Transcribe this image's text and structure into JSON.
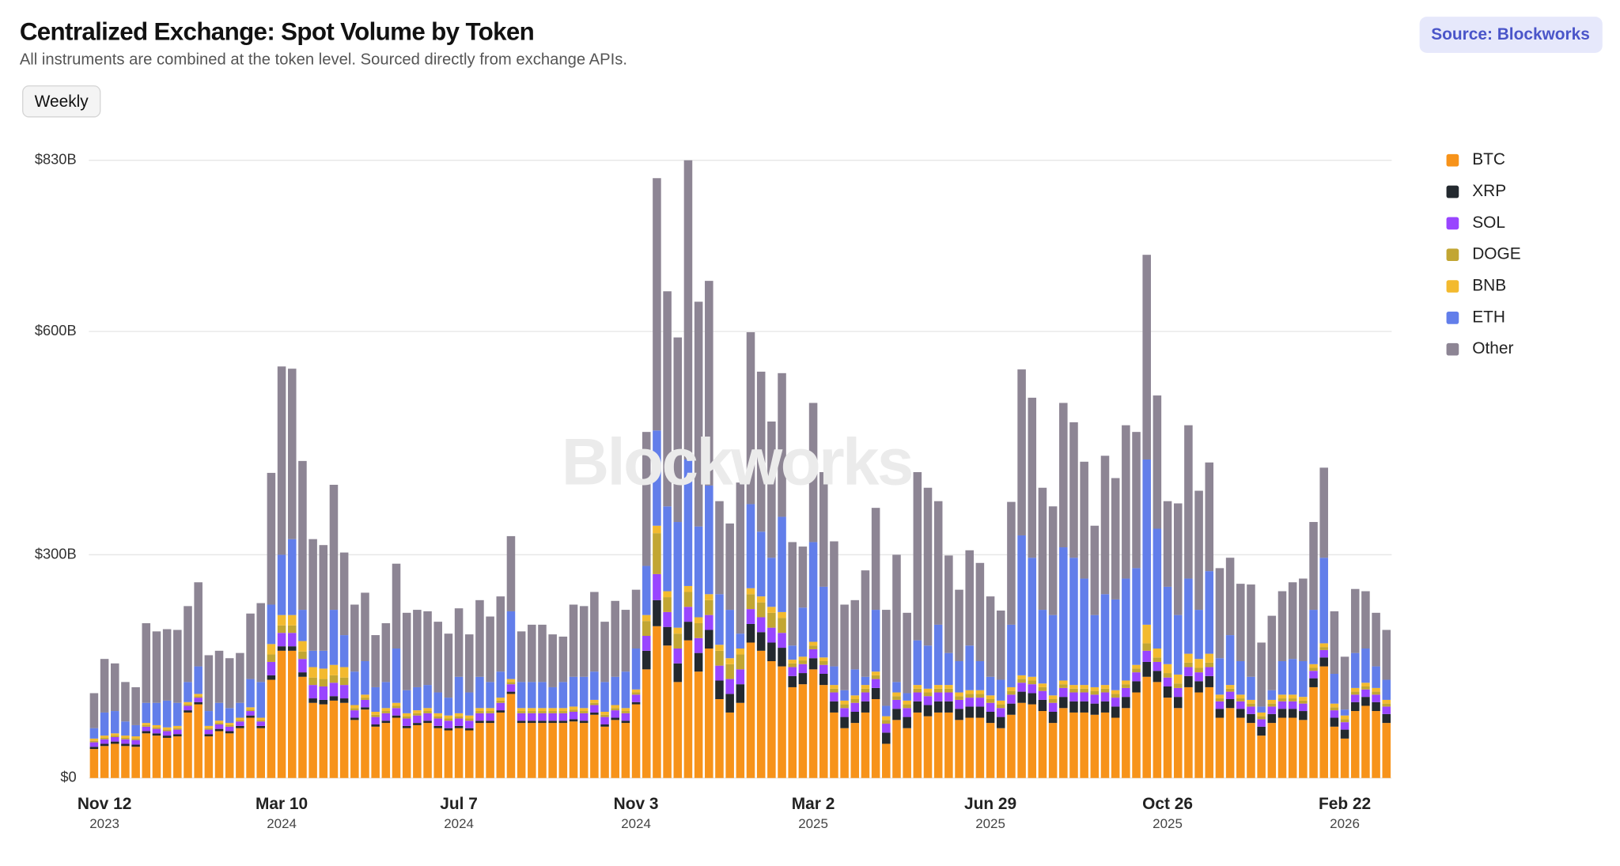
{
  "chart_data": {
    "type": "stacked-bar",
    "title": "Centralized Exchange: Spot Volume by Token",
    "subtitle": "All instruments are combined at the token level. Sourced directly from exchange APIs.",
    "source": "Source: Blockworks",
    "interval_button": "Weekly",
    "watermark": "Blockworks",
    "ylim": [
      0,
      830
    ],
    "yticks": [
      {
        "value": 0,
        "label": "$0"
      },
      {
        "value": 300,
        "label": "$300B"
      },
      {
        "value": 600,
        "label": "$600B"
      },
      {
        "value": 830,
        "label": "$830B"
      }
    ],
    "grid": true,
    "legend": "right",
    "categories": [
      null,
      "Nov 12",
      null,
      null,
      null,
      null,
      null,
      null,
      null,
      null,
      null,
      null,
      null,
      null,
      null,
      null,
      null,
      null,
      "Mar 10",
      null,
      null,
      null,
      null,
      null,
      null,
      null,
      null,
      null,
      null,
      null,
      null,
      null,
      null,
      null,
      null,
      "Jul 7",
      null,
      null,
      null,
      null,
      null,
      null,
      null,
      null,
      null,
      null,
      null,
      null,
      null,
      null,
      null,
      null,
      "Nov 3",
      null,
      null,
      null,
      null,
      null,
      null,
      null,
      null,
      null,
      null,
      null,
      null,
      null,
      null,
      null,
      null,
      "Mar 2",
      null,
      null,
      null,
      null,
      null,
      null,
      null,
      null,
      null,
      null,
      null,
      null,
      null,
      null,
      null,
      null,
      "Jun 29",
      null,
      null,
      null,
      null,
      null,
      null,
      null,
      null,
      null,
      null,
      null,
      null,
      null,
      null,
      null,
      null,
      "Oct 26",
      null,
      null,
      null,
      null,
      null,
      null,
      null,
      null,
      null,
      null,
      null,
      null,
      null,
      null,
      null,
      null,
      "Feb 22",
      null,
      null,
      null,
      null
    ],
    "category_years": [
      null,
      "2023",
      null,
      null,
      null,
      null,
      null,
      null,
      null,
      null,
      null,
      null,
      null,
      null,
      null,
      null,
      null,
      null,
      "2024",
      null,
      null,
      null,
      null,
      null,
      null,
      null,
      null,
      null,
      null,
      null,
      null,
      null,
      null,
      null,
      null,
      "2024",
      null,
      null,
      null,
      null,
      null,
      null,
      null,
      null,
      null,
      null,
      null,
      null,
      null,
      null,
      null,
      null,
      "2024",
      null,
      null,
      null,
      null,
      null,
      null,
      null,
      null,
      null,
      null,
      null,
      null,
      null,
      null,
      null,
      null,
      "2025",
      null,
      null,
      null,
      null,
      null,
      null,
      null,
      null,
      null,
      null,
      null,
      null,
      null,
      null,
      null,
      null,
      "2025",
      null,
      null,
      null,
      null,
      null,
      null,
      null,
      null,
      null,
      null,
      null,
      null,
      null,
      null,
      null,
      null,
      "2025",
      null,
      null,
      null,
      null,
      null,
      null,
      null,
      null,
      null,
      null,
      null,
      null,
      null,
      null,
      null,
      null,
      "2026",
      null,
      null,
      null,
      null
    ],
    "series": [
      {
        "name": "BTC",
        "color": "#f7931a",
        "values": [
          39,
          43,
          46,
          43,
          42,
          60,
          57,
          54,
          56,
          88,
          99,
          56,
          63,
          60,
          67,
          81,
          67,
          132,
          171,
          171,
          136,
          101,
          99,
          104,
          101,
          78,
          92,
          69,
          74,
          81,
          67,
          71,
          74,
          67,
          64,
          67,
          64,
          74,
          74,
          88,
          113,
          74,
          74,
          74,
          74,
          74,
          76,
          74,
          85,
          69,
          78,
          74,
          99,
          146,
          204,
          178,
          129,
          185,
          143,
          174,
          106,
          88,
          101,
          182,
          171,
          157,
          150,
          122,
          126,
          146,
          125,
          88,
          67,
          74,
          88,
          106,
          46,
          78,
          67,
          88,
          83,
          88,
          88,
          78,
          81,
          81,
          74,
          67,
          85,
          101,
          99,
          90,
          74,
          94,
          88,
          88,
          85,
          88,
          81,
          94,
          115,
          136,
          129,
          108,
          94,
          122,
          115,
          122,
          81,
          94,
          81,
          74,
          57,
          74,
          81,
          81,
          78,
          122,
          150,
          69,
          53,
          90,
          97,
          90,
          74
        ]
      },
      {
        "name": "XRP",
        "color": "#23292f",
        "values": [
          3,
          3,
          3,
          3,
          3,
          3,
          3,
          3,
          3,
          3,
          3,
          3,
          3,
          3,
          3,
          3,
          3,
          6,
          6,
          6,
          6,
          6,
          6,
          6,
          6,
          3,
          3,
          3,
          3,
          3,
          3,
          3,
          3,
          3,
          3,
          3,
          3,
          3,
          3,
          3,
          3,
          3,
          3,
          3,
          3,
          3,
          3,
          3,
          3,
          3,
          3,
          3,
          3,
          25,
          35,
          25,
          25,
          25,
          25,
          25,
          25,
          25,
          25,
          25,
          25,
          25,
          25,
          15,
          15,
          15,
          15,
          15,
          15,
          15,
          15,
          15,
          15,
          15,
          15,
          15,
          15,
          15,
          15,
          15,
          15,
          15,
          15,
          15,
          15,
          15,
          15,
          15,
          15,
          15,
          15,
          15,
          15,
          15,
          15,
          15,
          15,
          20,
          15,
          15,
          15,
          15,
          15,
          15,
          12,
          12,
          12,
          12,
          12,
          12,
          12,
          12,
          12,
          12,
          12,
          12,
          12,
          12,
          12,
          12,
          12
        ]
      },
      {
        "name": "SOL",
        "color": "#9945ff",
        "values": [
          6,
          6,
          6,
          6,
          6,
          6,
          6,
          6,
          6,
          6,
          6,
          6,
          6,
          6,
          6,
          6,
          6,
          18,
          18,
          18,
          18,
          18,
          18,
          18,
          18,
          10,
          10,
          10,
          10,
          10,
          10,
          10,
          10,
          10,
          10,
          10,
          10,
          10,
          10,
          10,
          10,
          10,
          10,
          10,
          10,
          10,
          10,
          10,
          10,
          10,
          10,
          10,
          10,
          20,
          35,
          20,
          20,
          20,
          20,
          20,
          20,
          20,
          20,
          20,
          20,
          20,
          20,
          12,
          12,
          12,
          12,
          12,
          12,
          12,
          12,
          12,
          12,
          12,
          12,
          12,
          12,
          12,
          12,
          12,
          12,
          12,
          12,
          12,
          12,
          12,
          12,
          12,
          12,
          12,
          12,
          12,
          12,
          12,
          12,
          12,
          12,
          15,
          12,
          12,
          12,
          12,
          12,
          12,
          10,
          10,
          10,
          10,
          10,
          10,
          10,
          10,
          10,
          10,
          10,
          10,
          10,
          10,
          10,
          10,
          10
        ]
      },
      {
        "name": "DOGE",
        "color": "#c2a633",
        "values": [
          2,
          2,
          2,
          2,
          2,
          2,
          2,
          2,
          2,
          2,
          2,
          2,
          2,
          2,
          2,
          2,
          2,
          10,
          10,
          10,
          10,
          10,
          10,
          10,
          10,
          3,
          3,
          3,
          3,
          3,
          3,
          3,
          3,
          3,
          3,
          3,
          3,
          3,
          3,
          3,
          3,
          3,
          3,
          3,
          3,
          3,
          3,
          3,
          3,
          3,
          3,
          3,
          3,
          20,
          55,
          20,
          20,
          20,
          20,
          20,
          20,
          20,
          20,
          20,
          20,
          20,
          20,
          5,
          5,
          5,
          5,
          5,
          5,
          5,
          5,
          5,
          5,
          5,
          5,
          5,
          5,
          5,
          5,
          5,
          5,
          5,
          5,
          5,
          5,
          5,
          5,
          5,
          5,
          5,
          5,
          5,
          5,
          5,
          5,
          5,
          5,
          10,
          6,
          6,
          6,
          6,
          6,
          6,
          4,
          4,
          4,
          4,
          4,
          4,
          4,
          4,
          4,
          4,
          4,
          4,
          4,
          4,
          4,
          4,
          4
        ]
      },
      {
        "name": "BNB",
        "color": "#f3ba2f",
        "values": [
          3,
          3,
          3,
          3,
          3,
          3,
          3,
          3,
          3,
          3,
          3,
          3,
          3,
          3,
          3,
          3,
          3,
          14,
          14,
          14,
          14,
          14,
          14,
          14,
          14,
          4,
          4,
          4,
          4,
          4,
          4,
          4,
          4,
          4,
          4,
          4,
          4,
          4,
          4,
          4,
          4,
          4,
          4,
          4,
          4,
          4,
          4,
          4,
          4,
          4,
          4,
          4,
          4,
          8,
          10,
          8,
          8,
          8,
          8,
          8,
          8,
          8,
          8,
          8,
          8,
          8,
          8,
          5,
          5,
          5,
          5,
          5,
          5,
          5,
          5,
          5,
          5,
          5,
          5,
          5,
          5,
          5,
          5,
          5,
          5,
          5,
          5,
          5,
          5,
          5,
          5,
          5,
          5,
          5,
          5,
          5,
          5,
          5,
          5,
          5,
          5,
          25,
          12,
          12,
          12,
          12,
          12,
          12,
          5,
          5,
          5,
          5,
          5,
          5,
          5,
          5,
          5,
          5,
          5,
          5,
          5,
          5,
          5,
          5,
          5
        ]
      },
      {
        "name": "ETH",
        "color": "#627eea",
        "values": [
          14,
          31,
          30,
          19,
          15,
          27,
          30,
          36,
          31,
          27,
          37,
          20,
          24,
          20,
          20,
          38,
          48,
          53,
          81,
          102,
          42,
          22,
          24,
          74,
          43,
          45,
          45,
          33,
          35,
          73,
          31,
          31,
          31,
          28,
          24,
          49,
          31,
          42,
          35,
          35,
          91,
          35,
          35,
          35,
          28,
          35,
          40,
          42,
          38,
          40,
          38,
          49,
          55,
          66,
          128,
          114,
          142,
          170,
          122,
          146,
          68,
          65,
          20,
          113,
          87,
          66,
          128,
          19,
          66,
          134,
          95,
          25,
          14,
          35,
          11,
          83,
          14,
          14,
          10,
          60,
          58,
          81,
          43,
          42,
          60,
          39,
          25,
          28,
          84,
          188,
          160,
          99,
          108,
          179,
          171,
          143,
          97,
          122,
          122,
          137,
          130,
          222,
          161,
          104,
          80,
          101,
          66,
          111,
          49,
          67,
          45,
          31,
          8,
          13,
          45,
          48,
          48,
          73,
          115,
          40,
          8,
          47,
          46,
          29,
          27
        ]
      },
      {
        "name": "Other",
        "color": "#8d8594",
        "values": [
          47,
          72,
          64,
          53,
          51,
          107,
          96,
          96,
          98,
          102,
          113,
          75,
          70,
          67,
          67,
          88,
          106,
          177,
          253,
          229,
          200,
          150,
          142,
          168,
          111,
          90,
          92,
          70,
          79,
          114,
          104,
          104,
          99,
          95,
          86,
          92,
          78,
          103,
          88,
          101,
          101,
          68,
          77,
          77,
          71,
          61,
          97,
          95,
          107,
          81,
          102,
          83,
          79,
          180,
          339,
          289,
          248,
          402,
          302,
          275,
          125,
          116,
          203,
          231,
          215,
          183,
          193,
          139,
          82,
          187,
          154,
          168,
          115,
          93,
          143,
          137,
          129,
          171,
          108,
          226,
          212,
          166,
          131,
          96,
          128,
          132,
          108,
          93,
          165,
          223,
          215,
          164,
          146,
          194,
          182,
          157,
          120,
          186,
          163,
          206,
          183,
          275,
          179,
          115,
          150,
          206,
          160,
          146,
          121,
          104,
          104,
          124,
          86,
          100,
          94,
          103,
          111,
          118,
          121,
          84,
          71,
          86,
          77,
          72,
          67
        ]
      }
    ]
  }
}
